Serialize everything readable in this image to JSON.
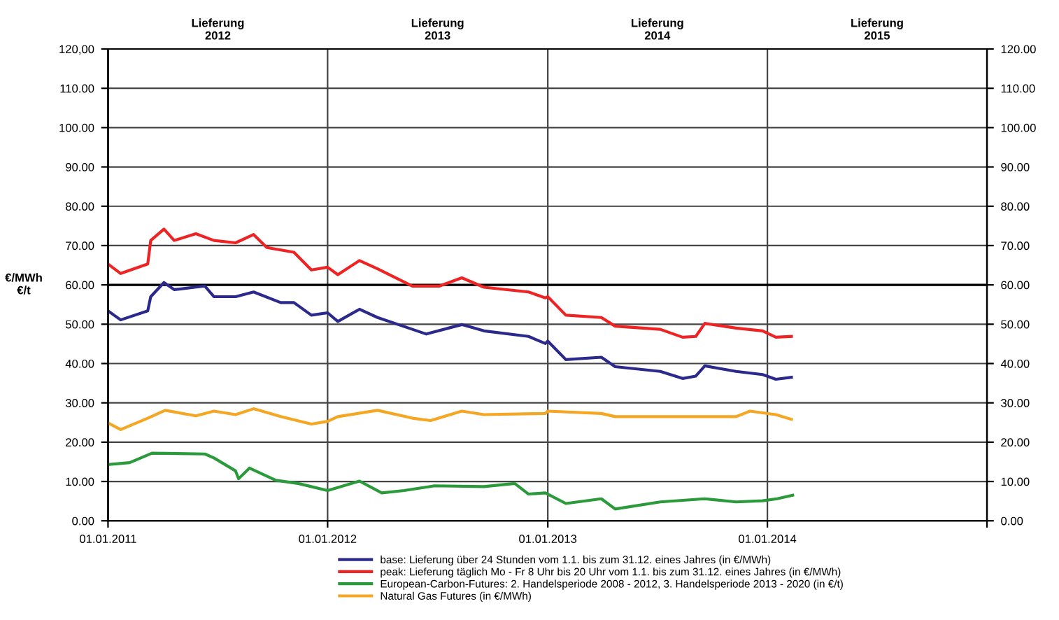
{
  "chart_data": {
    "type": "line",
    "ylabel": "€/MWh\n€/t",
    "xlim": [
      "2011-01-01",
      "2015-01-01"
    ],
    "xticks": [
      {
        "value": "2011-01-01",
        "label": "01.01.2011"
      },
      {
        "value": "2012-01-01",
        "label": "01.01.2012"
      },
      {
        "value": "2013-01-01",
        "label": "01.01.2013"
      },
      {
        "value": "2014-01-01",
        "label": "01.01.2014"
      },
      {
        "value": "2015-01-01",
        "label": null
      }
    ],
    "annotations": [
      "Lieferung\n2012",
      "Lieferung\n2013",
      "Lieferung\n2014",
      "Lieferung\n2015"
    ],
    "ylim": [
      0,
      120
    ],
    "yticks": [
      {
        "value": 0,
        "label": "0.00"
      },
      {
        "value": 10,
        "label": "10.00"
      },
      {
        "value": 20,
        "label": "20.00"
      },
      {
        "value": 30,
        "label": "30.00"
      },
      {
        "value": 40,
        "label": "40.00"
      },
      {
        "value": 50,
        "label": "50.00"
      },
      {
        "value": 60,
        "label": "60.00"
      },
      {
        "value": 70,
        "label": "70.00"
      },
      {
        "value": 80,
        "label": "80.00"
      },
      {
        "value": 90,
        "label": "90.00"
      },
      {
        "value": 100,
        "label": "100.00"
      },
      {
        "value": 110,
        "label": "110.00"
      },
      {
        "value": 120,
        "label": "120,00"
      }
    ],
    "y2lim": [
      0,
      120
    ],
    "y2ticks": [
      {
        "value": 0,
        "label": "0.00"
      },
      {
        "value": 10,
        "label": "10.00"
      },
      {
        "value": 20,
        "label": "20.00"
      },
      {
        "value": 30,
        "label": "30.00"
      },
      {
        "value": 40,
        "label": "40.00"
      },
      {
        "value": 50,
        "label": "50.00"
      },
      {
        "value": 60,
        "label": "60.00"
      },
      {
        "value": 70,
        "label": "70.00"
      },
      {
        "value": 80,
        "label": "80.00"
      },
      {
        "value": 90,
        "label": "90.00"
      },
      {
        "value": 100,
        "label": "100.00"
      },
      {
        "value": 110,
        "label": "110.00"
      },
      {
        "value": 120,
        "label": "120.00"
      }
    ],
    "grid": true,
    "legend": "bottom",
    "marker": "none",
    "line_style": "solid",
    "ref_lines": [
      {
        "axis": "y",
        "value": 60,
        "color": "#000000"
      }
    ],
    "series": [
      {
        "name": "base: Lieferung über 24 Stunden vom 1.1. bis zum 31.12. eines Jahres (in €/MWh)",
        "color": "#2b2a8c",
        "x": [
          "2011-01-01",
          "2011-01-22",
          "2011-03-08",
          "2011-03-13",
          "2011-04-04",
          "2011-04-21",
          "2011-06-11",
          "2011-06-26",
          "2011-08-01",
          "2011-08-31",
          "2011-10-15",
          "2011-11-06",
          "2011-12-05",
          "2012-01-01",
          "2012-01-18",
          "2012-02-23",
          "2012-03-24",
          "2012-05-21",
          "2012-06-13",
          "2012-08-11",
          "2012-09-17",
          "2012-11-30",
          "2012-12-28",
          "2013-01-01",
          "2013-01-31",
          "2013-03-31",
          "2013-04-23",
          "2013-07-07",
          "2013-08-13",
          "2013-09-04",
          "2013-09-19",
          "2013-11-10",
          "2013-12-24",
          "2014-01-15",
          "2014-02-10"
        ],
        "values": [
          53.4,
          51.1,
          53.4,
          57,
          60.6,
          58.8,
          59.7,
          57,
          57,
          58.2,
          55.5,
          55.5,
          52.3,
          52.9,
          50.7,
          53.8,
          51.7,
          48.7,
          47.5,
          49.9,
          48.3,
          46.9,
          45.1,
          45.7,
          41,
          41.6,
          39.2,
          38,
          36.2,
          36.8,
          39.4,
          38,
          37.2,
          36,
          36.5
        ]
      },
      {
        "name": "peak: Lieferung täglich Mo - Fr 8 Uhr bis 20 Uhr vom 1.1. bis zum 31.12. eines Jahres (in €/MWh)",
        "color": "#ee2424",
        "x": [
          "2011-01-01",
          "2011-01-22",
          "2011-03-08",
          "2011-03-13",
          "2011-04-04",
          "2011-04-21",
          "2011-05-27",
          "2011-06-26",
          "2011-08-01",
          "2011-08-31",
          "2011-09-22",
          "2011-11-06",
          "2011-12-05",
          "2012-01-01",
          "2012-01-18",
          "2012-02-23",
          "2012-03-24",
          "2012-05-21",
          "2012-07-05",
          "2012-08-11",
          "2012-09-17",
          "2012-11-30",
          "2012-12-28",
          "2013-01-01",
          "2013-01-31",
          "2013-03-31",
          "2013-04-23",
          "2013-07-07",
          "2013-08-13",
          "2013-09-04",
          "2013-09-19",
          "2013-11-10",
          "2013-12-24",
          "2014-01-15",
          "2014-02-10"
        ],
        "values": [
          65.3,
          62.9,
          65.3,
          71.3,
          74.2,
          71.3,
          73,
          71.3,
          70.7,
          72.8,
          69.5,
          68.3,
          63.8,
          64.5,
          62.6,
          66.2,
          64.1,
          59.7,
          59.7,
          61.8,
          59.4,
          58.2,
          56.7,
          57,
          52.3,
          51.7,
          49.5,
          48.7,
          46.7,
          46.9,
          50.2,
          49,
          48.3,
          46.7,
          46.9
        ]
      },
      {
        "name": "European-Carbon-Futures: 2. Handelsperiode 2008 - 2012, 3. Handelsperiode 2013 - 2020 (in €/t)",
        "color": "#2a9a3a",
        "x": [
          "2011-01-01",
          "2011-02-06",
          "2011-03-15",
          "2011-06-11",
          "2011-06-26",
          "2011-08-01",
          "2011-08-06",
          "2011-08-24",
          "2011-10-07",
          "2011-11-13",
          "2012-01-01",
          "2012-02-23",
          "2012-03-31",
          "2012-05-07",
          "2012-06-27",
          "2012-09-17",
          "2012-11-07",
          "2012-11-30",
          "2012-12-28",
          "2013-01-31",
          "2013-03-31",
          "2013-04-23",
          "2013-07-07",
          "2013-09-19",
          "2013-11-10",
          "2013-12-24",
          "2014-01-17",
          "2014-02-12"
        ],
        "values": [
          14.3,
          14.8,
          17.2,
          17,
          16,
          12.7,
          10.7,
          13.4,
          10.3,
          9.5,
          7.7,
          10.1,
          7.1,
          7.7,
          8.9,
          8.7,
          9.5,
          6.8,
          7.1,
          4.4,
          5.6,
          3,
          4.8,
          5.6,
          4.8,
          5.1,
          5.6,
          6.5
        ]
      },
      {
        "name": "Natural Gas Futures (in €/MWh)",
        "color": "#f5a623",
        "x": [
          "2011-01-01",
          "2011-01-22",
          "2011-03-08",
          "2011-04-06",
          "2011-05-27",
          "2011-06-26",
          "2011-08-01",
          "2011-08-31",
          "2011-10-15",
          "2011-12-05",
          "2012-01-01",
          "2012-01-18",
          "2012-03-24",
          "2012-05-21",
          "2012-06-20",
          "2012-08-11",
          "2012-09-17",
          "2012-12-28",
          "2013-01-01",
          "2013-03-31",
          "2013-04-23",
          "2013-08-22",
          "2013-11-10",
          "2013-12-03",
          "2014-01-15",
          "2014-02-10"
        ],
        "values": [
          24.9,
          23.2,
          26.1,
          28.1,
          26.7,
          27.9,
          27,
          28.5,
          26.5,
          24.6,
          25.3,
          26.5,
          28.1,
          26.1,
          25.5,
          27.9,
          27,
          27.3,
          27.9,
          27.3,
          26.5,
          26.5,
          26.5,
          27.9,
          27,
          25.8
        ]
      }
    ]
  }
}
